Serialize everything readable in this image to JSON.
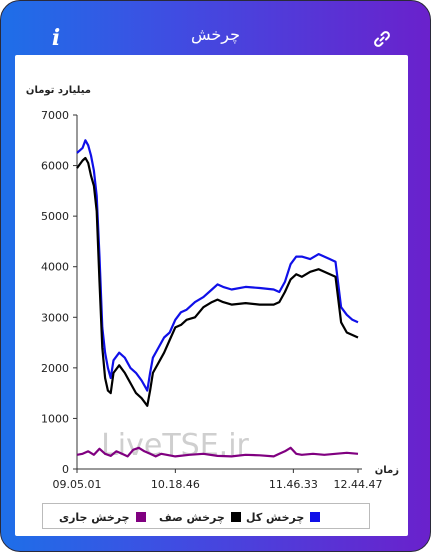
{
  "header": {
    "title": "چرخش",
    "info_icon": "info-icon",
    "link_icon": "link-icon"
  },
  "watermark": "LiveTSE.ir",
  "chart_data": {
    "type": "line",
    "ylabel": "میلیارد تومان",
    "xlabel": "زمان",
    "ylim": [
      0,
      7000
    ],
    "yticks": [
      "0",
      "1000",
      "2000",
      "3000",
      "4000",
      "5000",
      "6000",
      "7000"
    ],
    "x_ticks": [
      "09.05.01",
      "10.18.46",
      "11.46.33",
      "12.44.47"
    ],
    "x_tick_positions": [
      0,
      0.35,
      0.77,
      1.0
    ],
    "series": [
      {
        "name": "چرخش کل",
        "color": "#1010e8",
        "points": [
          [
            0,
            6250
          ],
          [
            0.02,
            6350
          ],
          [
            0.03,
            6500
          ],
          [
            0.04,
            6400
          ],
          [
            0.05,
            6200
          ],
          [
            0.06,
            5900
          ],
          [
            0.07,
            5400
          ],
          [
            0.08,
            4200
          ],
          [
            0.09,
            2800
          ],
          [
            0.1,
            2300
          ],
          [
            0.11,
            2000
          ],
          [
            0.12,
            1800
          ],
          [
            0.13,
            2150
          ],
          [
            0.15,
            2300
          ],
          [
            0.17,
            2200
          ],
          [
            0.19,
            2000
          ],
          [
            0.21,
            1900
          ],
          [
            0.23,
            1750
          ],
          [
            0.25,
            1550
          ],
          [
            0.26,
            1900
          ],
          [
            0.27,
            2200
          ],
          [
            0.29,
            2400
          ],
          [
            0.31,
            2600
          ],
          [
            0.33,
            2700
          ],
          [
            0.35,
            2950
          ],
          [
            0.37,
            3100
          ],
          [
            0.39,
            3150
          ],
          [
            0.42,
            3300
          ],
          [
            0.45,
            3400
          ],
          [
            0.48,
            3550
          ],
          [
            0.5,
            3650
          ],
          [
            0.52,
            3600
          ],
          [
            0.55,
            3550
          ],
          [
            0.6,
            3600
          ],
          [
            0.65,
            3580
          ],
          [
            0.7,
            3550
          ],
          [
            0.72,
            3500
          ],
          [
            0.74,
            3700
          ],
          [
            0.76,
            4050
          ],
          [
            0.78,
            4200
          ],
          [
            0.8,
            4200
          ],
          [
            0.83,
            4150
          ],
          [
            0.86,
            4250
          ],
          [
            0.88,
            4200
          ],
          [
            0.9,
            4150
          ],
          [
            0.92,
            4100
          ],
          [
            0.94,
            3200
          ],
          [
            0.96,
            3050
          ],
          [
            0.98,
            2950
          ],
          [
            1.0,
            2900
          ]
        ]
      },
      {
        "name": "چرخش صف",
        "color": "#000000",
        "points": [
          [
            0,
            5950
          ],
          [
            0.02,
            6100
          ],
          [
            0.03,
            6150
          ],
          [
            0.04,
            6050
          ],
          [
            0.05,
            5800
          ],
          [
            0.06,
            5600
          ],
          [
            0.07,
            5100
          ],
          [
            0.08,
            3700
          ],
          [
            0.09,
            2400
          ],
          [
            0.1,
            1800
          ],
          [
            0.11,
            1550
          ],
          [
            0.12,
            1500
          ],
          [
            0.13,
            1900
          ],
          [
            0.15,
            2050
          ],
          [
            0.17,
            1900
          ],
          [
            0.19,
            1700
          ],
          [
            0.21,
            1500
          ],
          [
            0.23,
            1400
          ],
          [
            0.25,
            1250
          ],
          [
            0.26,
            1550
          ],
          [
            0.27,
            1900
          ],
          [
            0.29,
            2100
          ],
          [
            0.31,
            2300
          ],
          [
            0.33,
            2550
          ],
          [
            0.35,
            2800
          ],
          [
            0.37,
            2850
          ],
          [
            0.39,
            2950
          ],
          [
            0.42,
            3000
          ],
          [
            0.45,
            3200
          ],
          [
            0.48,
            3300
          ],
          [
            0.5,
            3350
          ],
          [
            0.52,
            3300
          ],
          [
            0.55,
            3250
          ],
          [
            0.6,
            3280
          ],
          [
            0.65,
            3250
          ],
          [
            0.7,
            3250
          ],
          [
            0.72,
            3300
          ],
          [
            0.74,
            3500
          ],
          [
            0.76,
            3750
          ],
          [
            0.78,
            3850
          ],
          [
            0.8,
            3800
          ],
          [
            0.83,
            3900
          ],
          [
            0.86,
            3950
          ],
          [
            0.88,
            3900
          ],
          [
            0.9,
            3850
          ],
          [
            0.92,
            3800
          ],
          [
            0.94,
            2900
          ],
          [
            0.96,
            2700
          ],
          [
            0.98,
            2650
          ],
          [
            1.0,
            2600
          ]
        ]
      },
      {
        "name": "چرخش جاری",
        "color": "#800080",
        "points": [
          [
            0,
            280
          ],
          [
            0.02,
            300
          ],
          [
            0.04,
            350
          ],
          [
            0.06,
            280
          ],
          [
            0.08,
            400
          ],
          [
            0.1,
            300
          ],
          [
            0.12,
            260
          ],
          [
            0.14,
            350
          ],
          [
            0.16,
            300
          ],
          [
            0.18,
            250
          ],
          [
            0.2,
            380
          ],
          [
            0.22,
            420
          ],
          [
            0.24,
            350
          ],
          [
            0.26,
            300
          ],
          [
            0.28,
            250
          ],
          [
            0.3,
            300
          ],
          [
            0.35,
            250
          ],
          [
            0.4,
            280
          ],
          [
            0.45,
            300
          ],
          [
            0.5,
            260
          ],
          [
            0.55,
            250
          ],
          [
            0.6,
            280
          ],
          [
            0.65,
            270
          ],
          [
            0.7,
            250
          ],
          [
            0.72,
            300
          ],
          [
            0.74,
            350
          ],
          [
            0.76,
            420
          ],
          [
            0.78,
            300
          ],
          [
            0.8,
            280
          ],
          [
            0.84,
            300
          ],
          [
            0.88,
            280
          ],
          [
            0.92,
            300
          ],
          [
            0.96,
            320
          ],
          [
            1.0,
            300
          ]
        ]
      }
    ]
  },
  "legend": [
    {
      "label": "چرخش کل",
      "color": "#1010e8"
    },
    {
      "label": "چرخش صف",
      "color": "#000000"
    },
    {
      "label": "چرخش جاری",
      "color": "#800080"
    }
  ]
}
